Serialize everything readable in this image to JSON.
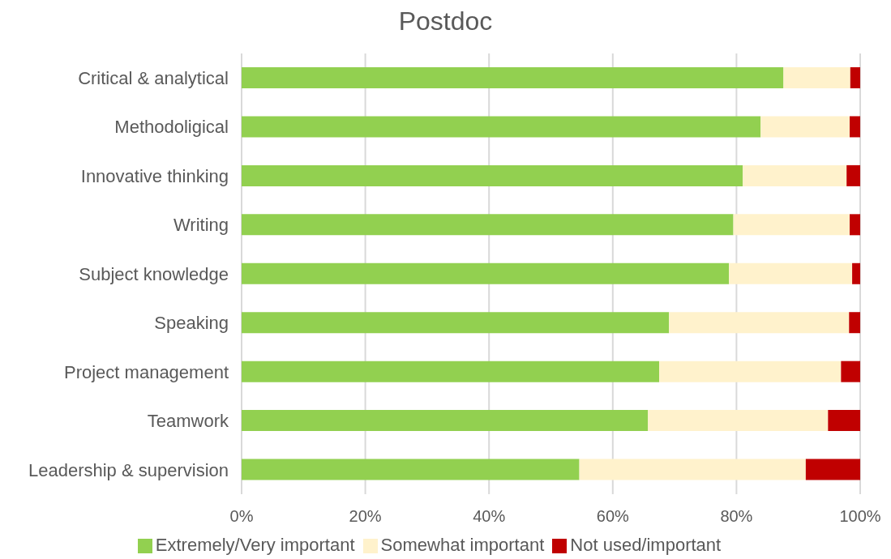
{
  "chart_data": {
    "type": "bar",
    "orientation": "horizontal",
    "stacked": true,
    "title": "Postdoc",
    "categories": [
      "Critical & analytical",
      "Methodoligical",
      "Innovative thinking",
      "Writing",
      "Subject knowledge",
      "Speaking",
      "Project management",
      "Teamwork",
      "Leadership & supervision"
    ],
    "series": [
      {
        "name": "Extremely/Very important",
        "color": "#92d050",
        "values": [
          87.6,
          83.9,
          81.0,
          79.5,
          78.8,
          69.1,
          67.5,
          65.7,
          54.6
        ]
      },
      {
        "name": "Somewhat important",
        "color": "#fff2cc",
        "values": [
          10.8,
          14.4,
          16.8,
          18.8,
          19.9,
          29.1,
          29.4,
          29.1,
          36.6
        ]
      },
      {
        "name": "Not used/important",
        "color": "#c00000",
        "values": [
          1.6,
          1.7,
          2.2,
          1.7,
          1.3,
          1.8,
          3.1,
          5.2,
          8.8
        ]
      }
    ],
    "xlim": [
      0,
      100
    ],
    "xticks": [
      {
        "value": 0,
        "label": "0%"
      },
      {
        "value": 20,
        "label": "20%"
      },
      {
        "value": 40,
        "label": "40%"
      },
      {
        "value": 60,
        "label": "60%"
      },
      {
        "value": 80,
        "label": "80%"
      },
      {
        "value": 100,
        "label": "100%"
      }
    ],
    "grid": "x",
    "legend": "bottom"
  }
}
